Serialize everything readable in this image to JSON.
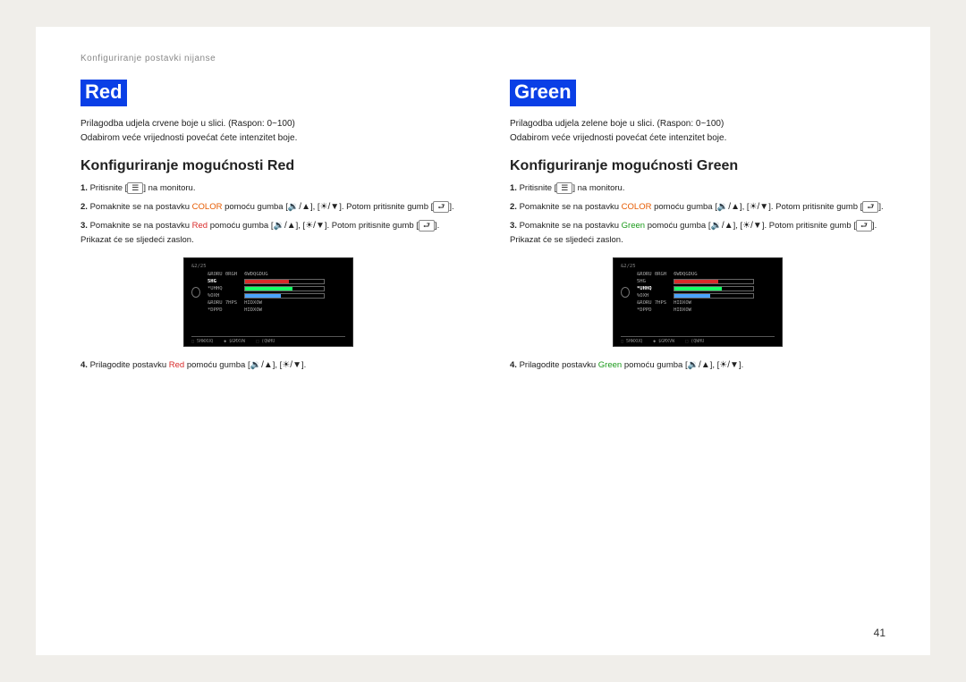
{
  "header": {
    "breadcrumb": "Konfiguriranje postavki nijanse"
  },
  "page_number": "41",
  "left": {
    "badge": "Red",
    "desc1": "Prilagodba udjela crvene boje u slici. (Raspon: 0~100)",
    "desc2": "Odabirom veće vrijednosti povećat ćete intenzitet boje.",
    "subtitle": "Konfiguriranje mogućnosti Red",
    "s1a": "Pritisnite [",
    "s1btn": "☰",
    "s1b": "] na monitoru.",
    "s2a": "Pomaknite se na postavku ",
    "color": "COLOR",
    "s2b": " pomoću gumba [",
    "icon_vol_up": "🔉/▲",
    "s2c": "], [",
    "icon_vol_dn": "☀/▼",
    "s2d": "]. Potom pritisnite gumb [",
    "icon_enter": "⮐",
    "s2e": "].",
    "s3a": "Pomaknite se na postavku ",
    "target": "Red",
    "s3b": " pomoću gumba [",
    "s3c": "], [",
    "s3d": "]. Potom pritisnite gumb [",
    "s3e": "]. Prikazat će se sljedeći zaslon.",
    "s4a": "Prilagodite postavku ",
    "s4b": " pomoću gumba [",
    "s4c": "], [",
    "s4d": "].",
    "monitor": {
      "top": "&2/25",
      "labels": [
        "&RORU 0RGH",
        "5HG",
        "*UHHQ",
        "%OXH",
        "&RORU 7HPS",
        "*DPPD"
      ],
      "vals": [
        "6WDQGDUG",
        "",
        "",
        "",
        "",
        "",
        "HIDXOW",
        "HIDXOW"
      ],
      "redbar_pct": 55,
      "greenbar_pct": 60,
      "bluebar_pct": 45,
      "footer": [
        "⬚ 5HWXUQ",
        "◆ $GMXVW",
        "⬚ (QWHU"
      ],
      "highlight": 1,
      "barclass": "redfill"
    }
  },
  "right": {
    "badge": "Green",
    "desc1": "Prilagodba udjela zelene boje u slici. (Raspon: 0~100)",
    "desc2": "Odabirom veće vrijednosti povećat ćete intenzitet boje.",
    "subtitle": "Konfiguriranje mogućnosti Green",
    "s1a": "Pritisnite [",
    "s1btn": "☰",
    "s1b": "] na monitoru.",
    "s2a": "Pomaknite se na postavku ",
    "color": "COLOR",
    "s2b": " pomoću gumba [",
    "icon_vol_up": "🔉/▲",
    "s2c": "], [",
    "icon_vol_dn": "☀/▼",
    "s2d": "]. Potom pritisnite gumb [",
    "icon_enter": "⮐",
    "s2e": "].",
    "s3a": "Pomaknite se na postavku ",
    "target": "Green",
    "s3b": " pomoću gumba [",
    "s3c": "], [",
    "s3d": "]. Potom pritisnite gumb [",
    "s3e": "]. Prikazat će se sljedeći zaslon.",
    "s4a": "Prilagodite postavku ",
    "s4b": " pomoću gumba [",
    "s4c": "], [",
    "s4d": "].",
    "monitor": {
      "top": "&2/25",
      "labels": [
        "&RORU 0RGH",
        "5HG",
        "*UHHQ",
        "%OXH",
        "&RORU 7HPS",
        "*DPPD"
      ],
      "vals": [
        "6WDQGDUG",
        "",
        "",
        "",
        "",
        "",
        "HIDXOW",
        "HIDXOW"
      ],
      "redbar_pct": 55,
      "greenbar_pct": 60,
      "bluebar_pct": 45,
      "footer": [
        "⬚ 5HWXUQ",
        "◆ $GMXVW",
        "⬚ (QWHU"
      ],
      "highlight": 2,
      "barclass": "greenfill"
    }
  }
}
